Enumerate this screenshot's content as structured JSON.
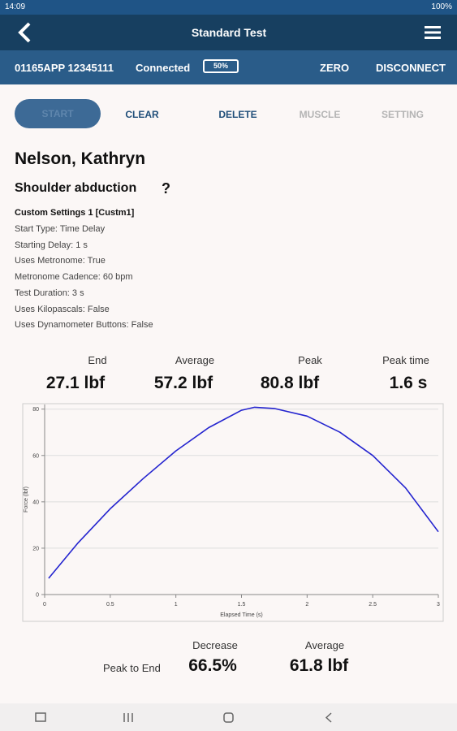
{
  "status_bar": {
    "time": "14:09",
    "battery": "100%"
  },
  "app_bar": {
    "title": "Standard Test"
  },
  "device_bar": {
    "device_id": "01165APP 12345111",
    "status": "Connected",
    "battery": "50%",
    "actions": [
      "ZERO",
      "DISCONNECT"
    ]
  },
  "toolbar": {
    "buttons": [
      "START",
      "CLEAR",
      "DELETE",
      "MUSCLE",
      "SETTING"
    ]
  },
  "patient": {
    "name": "Nelson, Kathryn"
  },
  "test": {
    "name": "Shoulder abduction",
    "help": "?",
    "settings_title": "Custom Settings 1 [Custm1]",
    "settings": [
      "Start Type: Time Delay",
      "Starting Delay: 1 s",
      "Uses Metronome: True",
      "Metronome Cadence: 60 bpm",
      "Test Duration: 3 s",
      "Uses Kilopascals: False",
      "Uses Dynamometer Buttons: False"
    ]
  },
  "summary": [
    {
      "label": "End",
      "value": "27.1 lbf"
    },
    {
      "label": "Average",
      "value": "57.2 lbf"
    },
    {
      "label": "Peak",
      "value": "80.8 lbf"
    },
    {
      "label": "Peak time",
      "value": "1.6 s"
    }
  ],
  "chart_data": {
    "type": "line",
    "x_label": "Elapsed Time (s)",
    "y_label": "Force (lbf)",
    "x": [
      0.03,
      0.25,
      0.5,
      0.75,
      1,
      1.25,
      1.5,
      1.6,
      1.75,
      2,
      2.25,
      2.5,
      2.75,
      3
    ],
    "values": [
      7,
      22,
      37,
      50,
      62,
      72,
      79.5,
      80.8,
      80.3,
      77,
      70,
      60,
      46,
      27.1
    ],
    "color": "#2424cf",
    "xlim": [
      0,
      3
    ],
    "ylim": [
      0,
      82
    ],
    "xticks": [
      0,
      0.5,
      1,
      1.5,
      2,
      2.5,
      3
    ],
    "yticks": [
      0,
      20,
      40,
      60,
      80
    ],
    "grid": true
  },
  "result": {
    "row_label": "Peak to End",
    "columns": [
      {
        "label": "Decrease",
        "value": "66.5%"
      },
      {
        "label": "Average",
        "value": "61.8 lbf"
      }
    ]
  }
}
